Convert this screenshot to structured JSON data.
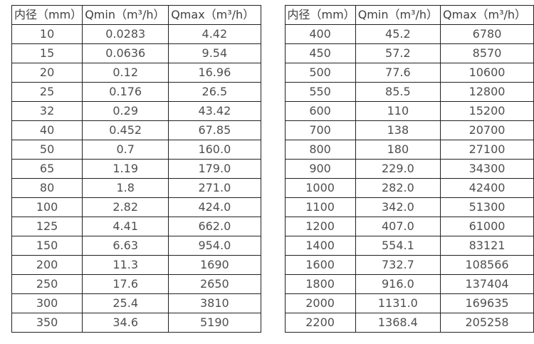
{
  "page": {
    "background": "#ffffff",
    "border_color": "#212121",
    "text_color": "#4f4f4f",
    "header_text_color": "#3f3f3f"
  },
  "tables": [
    {
      "name": "flow-table-small-diameters",
      "headers": [
        "内径（mm）",
        "Qmin（m³/h）",
        "Qmax（m³/h）"
      ],
      "rows": [
        [
          "10",
          "0.0283",
          "4.42"
        ],
        [
          "15",
          "0.0636",
          "9.54"
        ],
        [
          "20",
          "0.12",
          "16.96"
        ],
        [
          "25",
          "0.176",
          "26.5"
        ],
        [
          "32",
          "0.29",
          "43.42"
        ],
        [
          "40",
          "0.452",
          "67.85"
        ],
        [
          "50",
          "0.7",
          "160.0"
        ],
        [
          "65",
          "1.19",
          "179.0"
        ],
        [
          "80",
          "1.8",
          "271.0"
        ],
        [
          "100",
          "2.82",
          "424.0"
        ],
        [
          "125",
          "4.41",
          "662.0"
        ],
        [
          "150",
          "6.63",
          "954.0"
        ],
        [
          "200",
          "11.3",
          "1690"
        ],
        [
          "250",
          "17.6",
          "2650"
        ],
        [
          "300",
          "25.4",
          "3810"
        ],
        [
          "350",
          "34.6",
          "5190"
        ]
      ]
    },
    {
      "name": "flow-table-large-diameters",
      "headers": [
        "内径（mm）",
        "Qmin（m³/h）",
        "Qmax（m³/h）"
      ],
      "rows": [
        [
          "400",
          "45.2",
          "6780"
        ],
        [
          "450",
          "57.2",
          "8570"
        ],
        [
          "500",
          "77.6",
          "10600"
        ],
        [
          "550",
          "85.5",
          "12800"
        ],
        [
          "600",
          "110",
          "15200"
        ],
        [
          "700",
          "138",
          "20700"
        ],
        [
          "800",
          "180",
          "27100"
        ],
        [
          "900",
          "229.0",
          "34300"
        ],
        [
          "1000",
          "282.0",
          "42400"
        ],
        [
          "1100",
          "342.0",
          "51300"
        ],
        [
          "1200",
          "407.0",
          "61000"
        ],
        [
          "1400",
          "554.1",
          "83121"
        ],
        [
          "1600",
          "732.7",
          "108566"
        ],
        [
          "1800",
          "916.0",
          "137404"
        ],
        [
          "2000",
          "1131.0",
          "169635"
        ],
        [
          "2200",
          "1368.4",
          "205258"
        ]
      ]
    }
  ]
}
